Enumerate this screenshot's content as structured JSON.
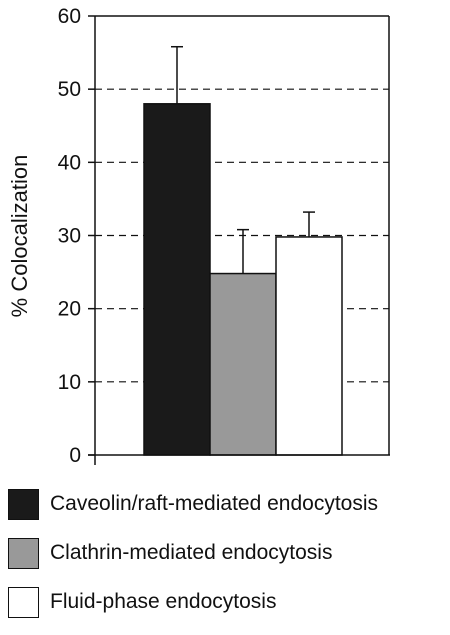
{
  "chart_data": {
    "type": "bar",
    "title": "",
    "xlabel": "",
    "ylabel": "% Colocalization",
    "ylim": [
      0,
      60
    ],
    "yticks": [
      "0",
      "10",
      "20",
      "30",
      "40",
      "50",
      "60"
    ],
    "gridlines": "dashed",
    "legend_position": "bottom",
    "series": [
      {
        "name": "Caveolin/raft-mediated endocytosis",
        "value": 48,
        "error": 7.8,
        "color": "#1a1a1a"
      },
      {
        "name": "Clathrin-mediated endocytosis",
        "value": 24.8,
        "error": 6,
        "color": "#999999"
      },
      {
        "name": "Fluid-phase endocytosis",
        "value": 29.8,
        "error": 3.4,
        "color": "#ffffff"
      }
    ]
  }
}
